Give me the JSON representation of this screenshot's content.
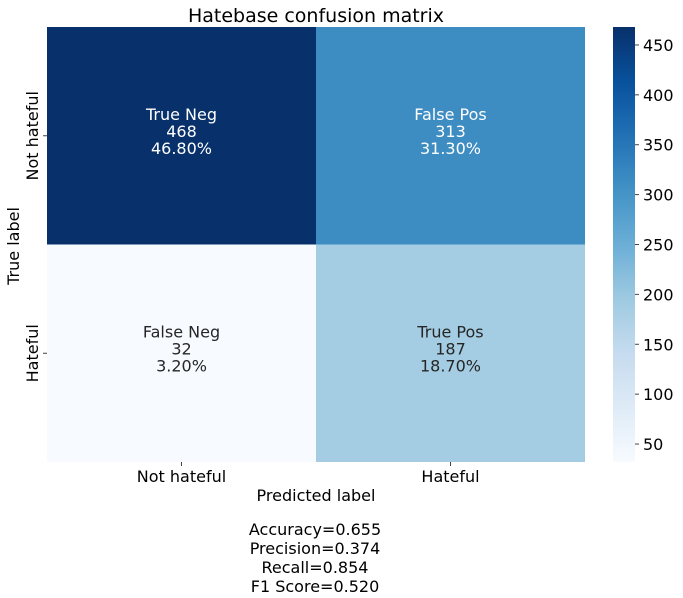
{
  "chart_data": {
    "type": "heatmap",
    "title": "Hatebase confusion matrix",
    "xlabel": "Predicted label",
    "ylabel": "True label",
    "x_categories": [
      "Not hateful",
      "Hateful"
    ],
    "y_categories": [
      "Not hateful",
      "Hateful"
    ],
    "cells": [
      [
        {
          "label": "True Neg",
          "value": 468,
          "percent": "46.80%"
        },
        {
          "label": "False Pos",
          "value": 313,
          "percent": "31.30%"
        }
      ],
      [
        {
          "label": "False Neg",
          "value": 32,
          "percent": "3.20%"
        },
        {
          "label": "True Pos",
          "value": 187,
          "percent": "18.70%"
        }
      ]
    ],
    "colormap": "Blues",
    "colorbar": {
      "min": 32,
      "max": 468,
      "ticks": [
        50,
        100,
        150,
        200,
        250,
        300,
        350,
        400,
        450
      ]
    }
  },
  "stats": {
    "accuracy": "Accuracy=0.655",
    "precision": "Precision=0.374",
    "recall": "Recall=0.854",
    "f1": "F1 Score=0.520"
  }
}
